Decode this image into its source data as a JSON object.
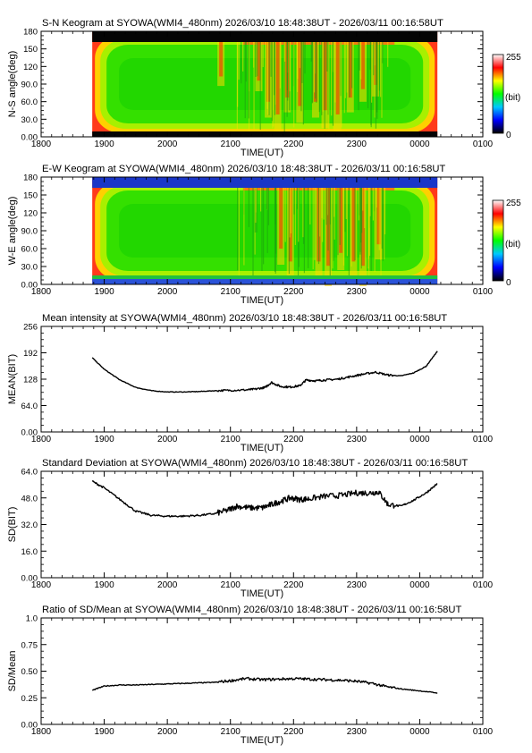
{
  "palette": {
    "background": "#ffffff",
    "axis": "#000000",
    "line": "#000000",
    "keogram_bar_top_sn": "#050505",
    "keogram_bar_bottom_sn": "#050505",
    "keogram_bar_top_ew": "#1a36c8",
    "keogram_bar_bottom_ew": "#2a52d8"
  },
  "x_axis": {
    "label": "TIME(UT)",
    "ticks": [
      "1800",
      "1900",
      "2000",
      "2100",
      "2200",
      "2300",
      "0000",
      "0100"
    ],
    "minor_ticks_per_hour": 6,
    "data_start_hour": 18.81,
    "data_end_hour": 24.28
  },
  "chart_data": [
    {
      "id": "sn-keogram",
      "type": "heatmap",
      "title": "S-N Keogram at SYOWA(WMI4_480nm)   2026/03/10 18:48:38UT - 2026/03/11 00:16:58UT",
      "xlabel": "TIME(UT)",
      "ylabel": "N-S angle(deg)",
      "ylim": [
        0,
        180
      ],
      "yticks": [
        "0.00",
        "30.0",
        "60.0",
        "90.0",
        "120",
        "150",
        "180"
      ],
      "xlim": [
        18,
        25
      ],
      "colorbar": {
        "min": 0,
        "max": 255,
        "min_label": "0",
        "max_label": "255",
        "unit_label": "(bit)",
        "colors": [
          "#000000",
          "#0000ff",
          "#00c8ff",
          "#00ff00",
          "#ffff00",
          "#ff0000",
          "#ffffff"
        ]
      },
      "edge_bars": "dark",
      "activity": [
        {
          "t": 20.85,
          "depth": 0.45
        },
        {
          "t": 21.45,
          "depth": 0.5
        },
        {
          "t": 21.6,
          "depth": 0.75
        },
        {
          "t": 21.75,
          "depth": 0.9
        },
        {
          "t": 21.9,
          "depth": 0.7
        },
        {
          "t": 22.1,
          "depth": 0.8
        },
        {
          "t": 22.35,
          "depth": 0.75
        },
        {
          "t": 22.5,
          "depth": 0.85
        },
        {
          "t": 22.7,
          "depth": 0.9
        },
        {
          "t": 22.9,
          "depth": 0.7
        },
        {
          "t": 23.1,
          "depth": 0.6
        },
        {
          "t": 23.3,
          "depth": 0.55
        }
      ]
    },
    {
      "id": "ew-keogram",
      "type": "heatmap",
      "title": "E-W Keogram at SYOWA(WMI4_480nm)   2026/03/10 18:48:38UT - 2026/03/11 00:16:58UT",
      "xlabel": "TIME(UT)",
      "ylabel": "W-E angle(deg)",
      "ylim": [
        0,
        180
      ],
      "yticks": [
        "0.00",
        "30.0",
        "60.0",
        "90.0",
        "120",
        "150",
        "180"
      ],
      "xlim": [
        18,
        25
      ],
      "colorbar": {
        "min": 0,
        "max": 255,
        "min_label": "0",
        "max_label": "255",
        "unit_label": "(bit)",
        "colors": [
          "#000000",
          "#0000ff",
          "#00c8ff",
          "#00ff00",
          "#ffff00",
          "#ff0000",
          "#ffffff"
        ]
      },
      "edge_bars": "blue",
      "activity": [
        {
          "t": 21.8,
          "depth": 0.75
        },
        {
          "t": 21.95,
          "depth": 0.9
        },
        {
          "t": 22.4,
          "depth": 0.9
        },
        {
          "t": 22.55,
          "depth": 0.95
        },
        {
          "t": 22.75,
          "depth": 0.8
        },
        {
          "t": 22.95,
          "depth": 0.9
        },
        {
          "t": 23.1,
          "depth": 0.95
        },
        {
          "t": 23.35,
          "depth": 0.7
        }
      ]
    },
    {
      "id": "mean-intensity",
      "type": "line",
      "title": "Mean intensity at SYOWA(WMI4_480nm)   2026/03/10 18:48:38UT - 2026/03/11 00:16:58UT",
      "xlabel": "TIME(UT)",
      "ylabel": "MEAN(BIT)",
      "ylim": [
        0,
        256
      ],
      "yticks": [
        "0.00",
        "64.0",
        "128",
        "192",
        "256"
      ],
      "xlim": [
        18,
        25
      ],
      "series": [
        {
          "x": [
            18.81,
            19.0,
            19.25,
            19.5,
            19.75,
            20.0,
            20.25,
            20.5,
            20.75,
            21.0,
            21.25,
            21.4,
            21.55,
            21.65,
            21.8,
            21.95,
            22.1,
            22.2,
            22.35,
            22.5,
            22.7,
            22.9,
            23.1,
            23.3,
            23.5,
            23.7,
            23.9,
            24.1,
            24.28
          ],
          "y": [
            180,
            152,
            126,
            108,
            100,
            97,
            97,
            98,
            100,
            101,
            102,
            104,
            108,
            120,
            110,
            109,
            112,
            126,
            124,
            126,
            128,
            134,
            140,
            145,
            138,
            136,
            143,
            159,
            196
          ],
          "noise": 1.5
        }
      ]
    },
    {
      "id": "standard-deviation",
      "type": "line",
      "title": "Standard Deviation at SYOWA(WMI4_480nm)   2026/03/10 18:48:38UT - 2026/03/11 00:16:58UT",
      "xlabel": "TIME(UT)",
      "ylabel": "SD(BIT)",
      "ylim": [
        0,
        64
      ],
      "yticks": [
        "0.00",
        "16.0",
        "32.0",
        "48.0",
        "64.0"
      ],
      "xlim": [
        18,
        25
      ],
      "series": [
        {
          "x": [
            18.81,
            19.0,
            19.25,
            19.5,
            19.75,
            20.0,
            20.25,
            20.5,
            20.75,
            20.95,
            21.1,
            21.3,
            21.5,
            21.65,
            21.8,
            21.95,
            22.1,
            22.25,
            22.5,
            22.75,
            23.0,
            23.2,
            23.35,
            23.5,
            23.7,
            23.9,
            24.1,
            24.28
          ],
          "y": [
            58,
            54,
            47,
            40,
            37.5,
            37,
            37,
            37.5,
            38.5,
            40.5,
            43,
            42,
            42,
            44,
            46,
            48,
            47,
            47.5,
            49,
            49.5,
            51,
            51,
            51.5,
            44,
            43,
            46.5,
            51,
            56.5
          ],
          "noise": 1.1
        }
      ]
    },
    {
      "id": "sd-mean-ratio",
      "type": "line",
      "title": "Ratio of SD/Mean at SYOWA(WMI4_480nm)   2026/03/10 18:48:38UT - 2026/03/11 00:16:58UT",
      "xlabel": "TIME(UT)",
      "ylabel": "SD/Mean",
      "ylim": [
        0,
        1
      ],
      "yticks": [
        "0.00",
        "0.25",
        "0.50",
        "0.75",
        "1.0"
      ],
      "xlim": [
        18,
        25
      ],
      "series": [
        {
          "x": [
            18.81,
            19.0,
            19.25,
            19.5,
            19.75,
            20.0,
            20.25,
            20.5,
            20.75,
            21.0,
            21.25,
            21.5,
            21.75,
            22.0,
            22.25,
            22.5,
            22.75,
            23.0,
            23.25,
            23.5,
            23.75,
            24.0,
            24.28
          ],
          "y": [
            0.32,
            0.36,
            0.37,
            0.37,
            0.375,
            0.38,
            0.385,
            0.39,
            0.395,
            0.41,
            0.43,
            0.42,
            0.425,
            0.43,
            0.425,
            0.42,
            0.415,
            0.405,
            0.385,
            0.35,
            0.33,
            0.315,
            0.295
          ],
          "noise": 0.008
        }
      ]
    }
  ]
}
